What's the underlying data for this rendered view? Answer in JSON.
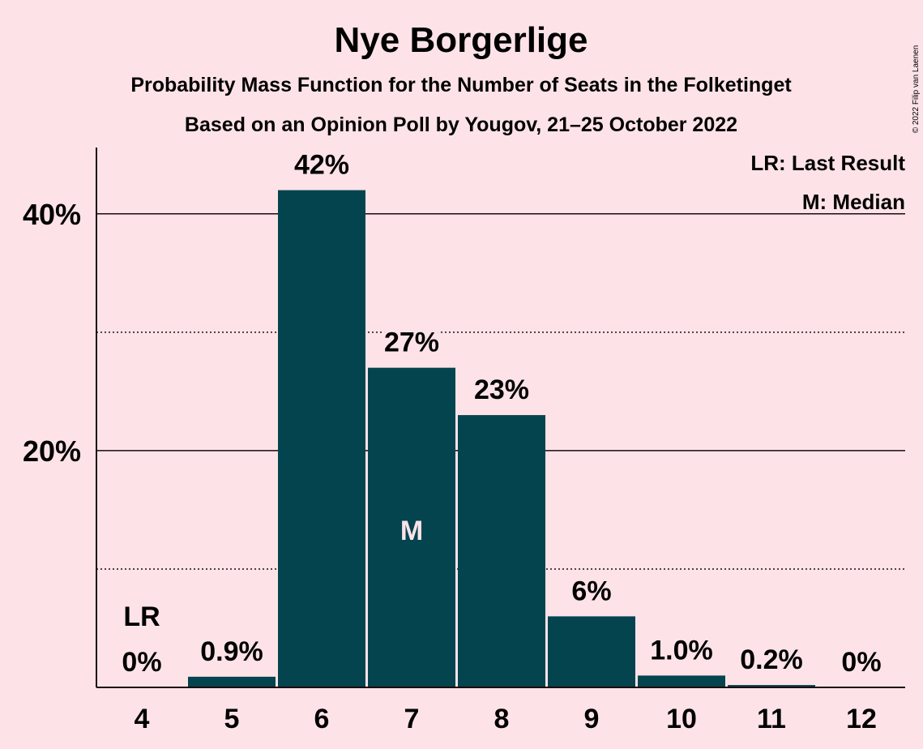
{
  "chart_data": {
    "type": "bar",
    "title": "Nye Borgerlige",
    "subtitle": "Probability Mass Function for the Number of Seats in the Folketinget",
    "subtitle2": "Based on an Opinion Poll by Yougov, 21–25 October 2022",
    "categories": [
      "4",
      "5",
      "6",
      "7",
      "8",
      "9",
      "10",
      "11",
      "12"
    ],
    "values": [
      0,
      0.9,
      42,
      27,
      23,
      6,
      1.0,
      0.2,
      0
    ],
    "data_labels": [
      "0%",
      "0.9%",
      "42%",
      "27%",
      "23%",
      "6%",
      "1.0%",
      "0.2%",
      "0%"
    ],
    "ylim": [
      0,
      45.6
    ],
    "yticks_major": [
      {
        "value": 20,
        "label": "20%"
      },
      {
        "value": 40,
        "label": "40%"
      }
    ],
    "yticks_minor": [
      10,
      30
    ],
    "last_result_category": "4",
    "last_result_marker": "LR",
    "median_category": "7",
    "median_marker": "M",
    "legend": [
      "LR: Last Result",
      "M: Median"
    ],
    "legend_position": "top-right",
    "bar_color": "#03444F",
    "background_color": "#FDE3E8",
    "copyright": "© 2022 Filip van Laenen"
  }
}
